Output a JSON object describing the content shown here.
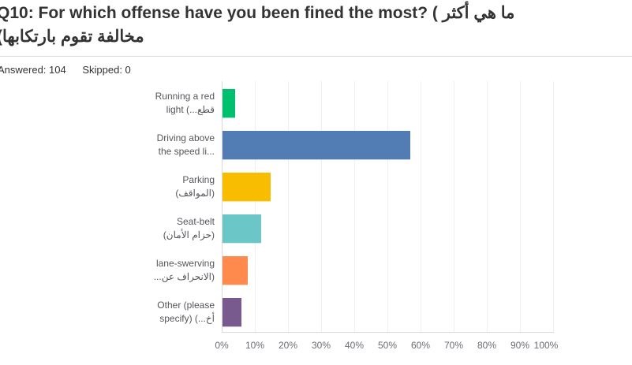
{
  "header": {
    "title_full": "Q10: For which offense have you been fined the most? ( ما هي أكثر مخالفة تقوم بارتكابها)",
    "title_line1": "Q10: For which offense have you been fined the most? ( ما هي أكثر",
    "title_line2": "مخالفة تقوم بارتكابها)",
    "answered": "Answered: 104",
    "skipped": "Skipped: 0"
  },
  "chart_data": {
    "type": "bar",
    "orientation": "horizontal",
    "title": "Q10: For which offense have you been fined the most? ( ما هي أكثر مخالفة تقوم بارتكابها)",
    "categories": [
      "Running a red light (...قطع",
      "Driving above the speed li...",
      "Parking (المواقف)",
      "Seat-belt (حزام الأمان)",
      "lane-swerving (الانحراف عن...",
      "Other (please specify) (...أخ"
    ],
    "category_lines": [
      [
        "Running a red",
        "light (...قطع"
      ],
      [
        "Driving above",
        "the speed li..."
      ],
      [
        "Parking",
        "(المواقف)"
      ],
      [
        "Seat-belt",
        "(حزام الأمان)"
      ],
      [
        "lane-swerving",
        "(الانحراف عن..."
      ],
      [
        "Other (please",
        "specify) (...أخ"
      ]
    ],
    "values": [
      3.85,
      56.73,
      14.42,
      11.54,
      7.69,
      5.77
    ],
    "unit": "%",
    "bar_colors": [
      "#00BF6F",
      "#527CB4",
      "#F9BD00",
      "#6AC6C7",
      "#FF8A4E",
      "#785A8E"
    ],
    "xlabel": "",
    "ylabel": "",
    "x_ticks": [
      "0%",
      "10%",
      "20%",
      "30%",
      "40%",
      "50%",
      "60%",
      "70%",
      "80%",
      "90%",
      "100%"
    ],
    "xlim": [
      0,
      100
    ],
    "grid": "vertical-only",
    "legend": "none"
  },
  "colors": {
    "title_text": "#333333",
    "meta_text": "#333333",
    "category_text": "#54565b",
    "tick_text": "#6b6b74",
    "gridline": "#efefef",
    "axis_line": "#d9d9d9",
    "divider": "#dcdcdc"
  }
}
